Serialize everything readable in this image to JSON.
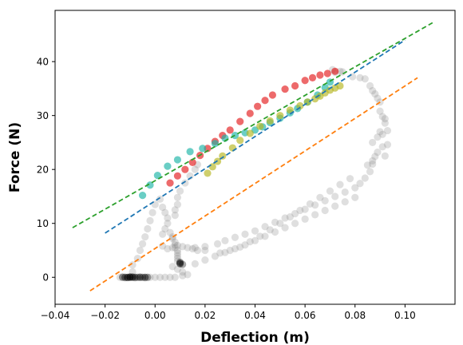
{
  "chart_data": {
    "type": "scatter",
    "title": "",
    "xlabel": "Deflection (m)",
    "ylabel": "Force (N)",
    "xlim": [
      -0.04,
      0.12
    ],
    "ylim": [
      -5,
      49.5
    ],
    "xticks": [
      -0.04,
      -0.02,
      0.0,
      0.02,
      0.04,
      0.06,
      0.08,
      0.1
    ],
    "xtick_labels": [
      "−0.04",
      "−0.02",
      "0.00",
      "0.02",
      "0.04",
      "0.06",
      "0.08",
      "0.10"
    ],
    "yticks": [
      0,
      10,
      20,
      30,
      40
    ],
    "ytick_labels": [
      "0",
      "10",
      "20",
      "30",
      "40"
    ],
    "grid": false,
    "legend": "none",
    "series": [
      {
        "kind": "scatter",
        "color": "#808080",
        "opacity": 0.25,
        "points": [
          [
            -0.014,
            0
          ],
          [
            -0.012,
            0
          ],
          [
            -0.01,
            0
          ],
          [
            -0.008,
            0
          ],
          [
            -0.006,
            0
          ],
          [
            -0.004,
            0
          ],
          [
            -0.002,
            0
          ],
          [
            0.0,
            0
          ],
          [
            0.002,
            0
          ],
          [
            0.004,
            0
          ],
          [
            0.006,
            0
          ],
          [
            0.008,
            0
          ],
          [
            0.011,
            0.3
          ],
          [
            -0.012,
            -0.1
          ],
          [
            -0.01,
            0.1
          ],
          [
            -0.008,
            -0.1
          ],
          [
            -0.006,
            0.1
          ],
          [
            -0.004,
            -0.1
          ],
          [
            -0.013,
            0.1
          ],
          [
            -0.009,
            1
          ],
          [
            -0.009,
            2.3
          ],
          [
            -0.007,
            3.5
          ],
          [
            -0.006,
            5
          ],
          [
            -0.005,
            6.2
          ],
          [
            -0.004,
            7.5
          ],
          [
            -0.003,
            9
          ],
          [
            -0.002,
            10.5
          ],
          [
            -0.001,
            12
          ],
          [
            0.0,
            13.5
          ],
          [
            0.003,
            8
          ],
          [
            0.004,
            9
          ],
          [
            0.005,
            10
          ],
          [
            0.005,
            11
          ],
          [
            0.004,
            12
          ],
          [
            0.003,
            13
          ],
          [
            0.002,
            14.5
          ],
          [
            0.006,
            8.3
          ],
          [
            0.007,
            7.5
          ],
          [
            0.007,
            7.2
          ],
          [
            0.008,
            6.5
          ],
          [
            0.008,
            6.0
          ],
          [
            0.008,
            5.5
          ],
          [
            0.009,
            5.0
          ],
          [
            0.009,
            4.5
          ],
          [
            0.009,
            4.0
          ],
          [
            0.009,
            3.5
          ],
          [
            0.009,
            3.0
          ],
          [
            0.003,
            5.8
          ],
          [
            0.005,
            5.3
          ],
          [
            0.007,
            5.5
          ],
          [
            0.009,
            5.9
          ],
          [
            0.011,
            5.7
          ],
          [
            0.013,
            5.5
          ],
          [
            0.015,
            5.3
          ],
          [
            0.017,
            5.0
          ],
          [
            0.02,
            5.0
          ],
          [
            0.007,
            2.0
          ],
          [
            0.009,
            1.5
          ],
          [
            0.011,
            1.0
          ],
          [
            0.013,
            0.5
          ],
          [
            0.008,
            11.5
          ],
          [
            0.008,
            12.5
          ],
          [
            0.009,
            13.5
          ],
          [
            0.009,
            14.8
          ],
          [
            0.01,
            16
          ],
          [
            0.012,
            17.5
          ],
          [
            0.014,
            18.8
          ],
          [
            0.016,
            20
          ],
          [
            0.017,
            20.9
          ],
          [
            0.016,
            5.5
          ],
          [
            0.02,
            5.7
          ],
          [
            0.025,
            6.2
          ],
          [
            0.028,
            6.8
          ],
          [
            0.032,
            7.4
          ],
          [
            0.036,
            8.0
          ],
          [
            0.04,
            8.6
          ],
          [
            0.044,
            9.4
          ],
          [
            0.048,
            10.2
          ],
          [
            0.052,
            11.0
          ],
          [
            0.056,
            11.8
          ],
          [
            0.06,
            12.6
          ],
          [
            0.064,
            13.4
          ],
          [
            0.068,
            14.2
          ],
          [
            0.072,
            15.0
          ],
          [
            0.076,
            15.8
          ],
          [
            0.08,
            16.6
          ],
          [
            0.082,
            17.4
          ],
          [
            0.084,
            18.4
          ],
          [
            0.086,
            19.6
          ],
          [
            0.016,
            2.5
          ],
          [
            0.02,
            3.2
          ],
          [
            0.024,
            3.9
          ],
          [
            0.028,
            4.6
          ],
          [
            0.032,
            5.3
          ],
          [
            0.036,
            6.0
          ],
          [
            0.04,
            6.8
          ],
          [
            0.044,
            7.6
          ],
          [
            0.048,
            8.4
          ],
          [
            0.052,
            9.2
          ],
          [
            0.056,
            10.0
          ],
          [
            0.06,
            10.8
          ],
          [
            0.064,
            11.6
          ],
          [
            0.068,
            12.4
          ],
          [
            0.072,
            13.2
          ],
          [
            0.076,
            14.0
          ],
          [
            0.08,
            14.8
          ],
          [
            0.026,
            4.5
          ],
          [
            0.03,
            5.0
          ],
          [
            0.034,
            5.6
          ],
          [
            0.038,
            6.6
          ],
          [
            0.042,
            7.6
          ],
          [
            0.046,
            8.8
          ],
          [
            0.05,
            10.0
          ],
          [
            0.054,
            11.2
          ],
          [
            0.058,
            12.4
          ],
          [
            0.062,
            13.6
          ],
          [
            0.066,
            14.8
          ],
          [
            0.07,
            16.0
          ],
          [
            0.074,
            17.2
          ],
          [
            0.078,
            18.3
          ],
          [
            0.085,
            20.8
          ],
          [
            0.087,
            21.6
          ],
          [
            0.088,
            22.4
          ],
          [
            0.089,
            23.2
          ],
          [
            0.087,
            21.0
          ],
          [
            0.091,
            24.2
          ],
          [
            0.091,
            26.5
          ],
          [
            0.092,
            28.6
          ],
          [
            0.091,
            29.8
          ],
          [
            0.09,
            30.8
          ],
          [
            0.09,
            32.5
          ],
          [
            0.089,
            33.2
          ],
          [
            0.087,
            34.6
          ],
          [
            0.086,
            35.5
          ],
          [
            0.082,
            37.0
          ],
          [
            0.079,
            37.2
          ],
          [
            0.074,
            38.2
          ],
          [
            0.071,
            38.5
          ],
          [
            0.087,
            25.0
          ],
          [
            0.089,
            26.0
          ],
          [
            0.09,
            27.0
          ],
          [
            0.092,
            29.4
          ],
          [
            0.093,
            27.2
          ],
          [
            0.093,
            24.6
          ],
          [
            0.092,
            22.5
          ],
          [
            0.088,
            34.0
          ],
          [
            0.084,
            36.8
          ],
          [
            0.075,
            38.1
          ],
          [
            0.072,
            38.0
          ]
        ]
      },
      {
        "kind": "scatter",
        "color": "#000000",
        "opacity": 0.35,
        "points": [
          [
            -0.013,
            0
          ],
          [
            -0.012,
            0
          ],
          [
            -0.011,
            0
          ],
          [
            -0.01,
            0
          ],
          [
            -0.009,
            0
          ],
          [
            -0.008,
            0
          ],
          [
            -0.007,
            0
          ],
          [
            -0.006,
            0
          ],
          [
            -0.005,
            0
          ],
          [
            -0.004,
            0
          ],
          [
            -0.003,
            0
          ],
          [
            -0.01,
            0.05
          ],
          [
            -0.011,
            -0.05
          ],
          [
            -0.009,
            0.05
          ],
          [
            0.01,
            2.6
          ],
          [
            0.011,
            2.4
          ],
          [
            0.01,
            2.8
          ],
          [
            0.01,
            2.5
          ]
        ]
      },
      {
        "kind": "scatter",
        "color": "#e31a1c",
        "opacity": 0.65,
        "points": [
          [
            0.006,
            17.5
          ],
          [
            0.009,
            18.8
          ],
          [
            0.012,
            20.0
          ],
          [
            0.015,
            21.3
          ],
          [
            0.018,
            22.6
          ],
          [
            0.021,
            23.9
          ],
          [
            0.024,
            25.2
          ],
          [
            0.027,
            26.3
          ],
          [
            0.03,
            27.3
          ],
          [
            0.034,
            28.9
          ],
          [
            0.038,
            30.4
          ],
          [
            0.041,
            31.7
          ],
          [
            0.044,
            32.8
          ],
          [
            0.047,
            33.8
          ],
          [
            0.052,
            34.9
          ],
          [
            0.056,
            35.5
          ],
          [
            0.06,
            36.5
          ],
          [
            0.063,
            37.0
          ],
          [
            0.066,
            37.5
          ],
          [
            0.069,
            37.8
          ],
          [
            0.072,
            38.2
          ]
        ]
      },
      {
        "kind": "scatter",
        "color": "#1ab3a6",
        "opacity": 0.65,
        "points": [
          [
            -0.005,
            15.2
          ],
          [
            -0.002,
            17.1
          ],
          [
            0.001,
            18.9
          ],
          [
            0.005,
            20.6
          ],
          [
            0.009,
            21.8
          ],
          [
            0.014,
            23.3
          ],
          [
            0.019,
            23.9
          ],
          [
            0.024,
            24.8
          ],
          [
            0.028,
            25.8
          ],
          [
            0.032,
            26.3
          ],
          [
            0.036,
            26.8
          ],
          [
            0.04,
            27.3
          ],
          [
            0.043,
            27.9
          ],
          [
            0.046,
            28.7
          ],
          [
            0.05,
            29.5
          ],
          [
            0.054,
            30.5
          ],
          [
            0.057,
            31.3
          ],
          [
            0.061,
            32.5
          ],
          [
            0.065,
            33.8
          ],
          [
            0.068,
            35.2
          ],
          [
            0.07,
            36.2
          ]
        ]
      },
      {
        "kind": "scatter",
        "color": "#b5b51e",
        "opacity": 0.65,
        "points": [
          [
            0.021,
            19.3
          ],
          [
            0.023,
            20.5
          ],
          [
            0.025,
            21.5
          ],
          [
            0.027,
            22.5
          ],
          [
            0.031,
            24.0
          ],
          [
            0.034,
            25.4
          ],
          [
            0.038,
            26.7
          ],
          [
            0.042,
            28.0
          ],
          [
            0.046,
            29.0
          ],
          [
            0.05,
            30.0
          ],
          [
            0.054,
            31.0
          ],
          [
            0.058,
            31.8
          ],
          [
            0.061,
            32.5
          ],
          [
            0.064,
            33.1
          ],
          [
            0.066,
            33.6
          ],
          [
            0.068,
            34.2
          ],
          [
            0.07,
            34.7
          ],
          [
            0.072,
            35.1
          ],
          [
            0.074,
            35.5
          ]
        ]
      },
      {
        "kind": "line",
        "style": "dashed",
        "color": "#1f77b4",
        "points": [
          [
            -0.02,
            8.2
          ],
          [
            0.1,
            44.0
          ]
        ]
      },
      {
        "kind": "line",
        "style": "dashed",
        "color": "#ff7f0e",
        "points": [
          [
            -0.026,
            -2.5
          ],
          [
            0.105,
            37.0
          ]
        ]
      },
      {
        "kind": "line",
        "style": "dashed",
        "color": "#2ca02c",
        "points": [
          [
            -0.033,
            9.2
          ],
          [
            0.111,
            47.2
          ]
        ]
      }
    ]
  }
}
